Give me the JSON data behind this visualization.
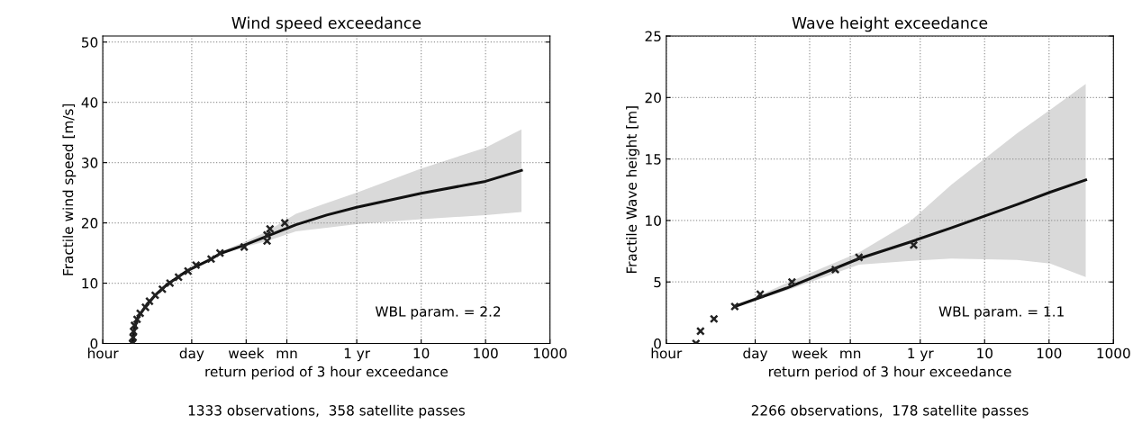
{
  "chart_data": [
    {
      "type": "scatter",
      "title": "Wind speed exceedance",
      "xlabel": "return period of 3 hour exceedance",
      "ylabel": "Fractile wind speed [m/s]",
      "annotations": [
        "WBL param. = 2.2",
        "1333 observations,  358 satellite passes"
      ],
      "log": "x",
      "grid": true,
      "xlim": [
        0.000114,
        1000
      ],
      "xticks": [
        {
          "value": 0.000114,
          "label": "hour"
        },
        {
          "value": 0.00274,
          "label": "day"
        },
        {
          "value": 0.0192,
          "label": "week"
        },
        {
          "value": 0.0822,
          "label": "mn"
        },
        {
          "value": 1,
          "label": "1 yr"
        },
        10,
        100,
        1000
      ],
      "ylim": [
        0,
        51
      ],
      "yticks": [
        0,
        10,
        20,
        30,
        40,
        50
      ],
      "series": [
        {
          "type": "line",
          "color": "#111111",
          "line_style": "solid",
          "x": [
            0.000329,
            0.000354,
            0.0004,
            0.000514,
            0.000742,
            0.00114,
            0.00228,
            0.00548,
            0.00753,
            0.0179,
            0.0405,
            0.114,
            0.342,
            1,
            10,
            100,
            361
          ],
          "values": [
            0,
            2.5,
            4.3,
            6,
            8,
            9.8,
            12,
            14,
            14.9,
            16.3,
            17.8,
            19.7,
            21.3,
            22.6,
            24.9,
            26.9,
            28.7
          ],
          "lower": [
            null,
            null,
            null,
            null,
            null,
            null,
            null,
            null,
            14.8,
            16.0,
            17.0,
            18.6,
            19.2,
            19.8,
            20.6,
            21.3,
            21.8
          ],
          "upper": [
            null,
            null,
            null,
            null,
            null,
            null,
            null,
            null,
            15.2,
            16.8,
            18.6,
            21.5,
            23.3,
            25,
            29,
            32.5,
            35.5
          ]
        },
        {
          "color": "#222222",
          "marker": "cross",
          "x": [
            0.00033,
            0.000337,
            0.000342,
            0.000354,
            0.000388,
            0.000434,
            0.000525,
            0.000605,
            0.000742,
            0.00096,
            0.00126,
            0.00171,
            0.0024,
            0.0032,
            0.00548,
            0.00753,
            0.0179,
            0.0405,
            0.0405,
            0.045,
            0.0763
          ],
          "values": [
            0,
            1,
            2,
            3,
            4,
            5,
            6,
            7,
            8,
            9,
            10,
            11,
            12,
            13,
            14,
            15,
            16,
            17,
            18,
            19,
            20
          ]
        }
      ]
    },
    {
      "type": "scatter",
      "title": "Wave height exceedance",
      "xlabel": "return period of 3 hour exceedance",
      "ylabel": "Fractile Wave height [m]",
      "annotations": [
        "WBL param. = 1.1",
        "2266 observations,  178 satellite passes"
      ],
      "log": "x",
      "grid": true,
      "xlim": [
        0.000114,
        1000
      ],
      "xticks": [
        {
          "value": 0.000114,
          "label": "hour"
        },
        {
          "value": 0.00274,
          "label": "day"
        },
        {
          "value": 0.0192,
          "label": "week"
        },
        {
          "value": 0.0822,
          "label": "mn"
        },
        {
          "value": 1,
          "label": "1 yr"
        },
        10,
        100,
        1000
      ],
      "ylim": [
        0,
        25
      ],
      "yticks": [
        0,
        5,
        10,
        15,
        20,
        25
      ],
      "series": [
        {
          "type": "line",
          "color": "#111111",
          "line_style": "solid",
          "x": [
            0.00132,
            0.0084,
            0.112,
            0.656,
            3.04,
            32,
            104,
            371
          ],
          "values": [
            3,
            4.5,
            6.9,
            8.2,
            9.4,
            11.3,
            12.3,
            13.3
          ],
          "lower": [
            3,
            4.3,
            6.4,
            6.7,
            6.9,
            6.8,
            6.5,
            5.4
          ],
          "upper": [
            3,
            4.9,
            7.4,
            9.8,
            12.9,
            17.1,
            19.0,
            21.1
          ]
        },
        {
          "color": "#222222",
          "marker": "cross",
          "x": [
            0.00033,
            0.000388,
            0.000628,
            0.00132,
            0.00328,
            0.0102,
            0.0481,
            0.112,
            0.792
          ],
          "values": [
            0,
            1,
            2,
            3,
            4,
            5,
            6,
            7,
            8
          ]
        }
      ]
    }
  ]
}
